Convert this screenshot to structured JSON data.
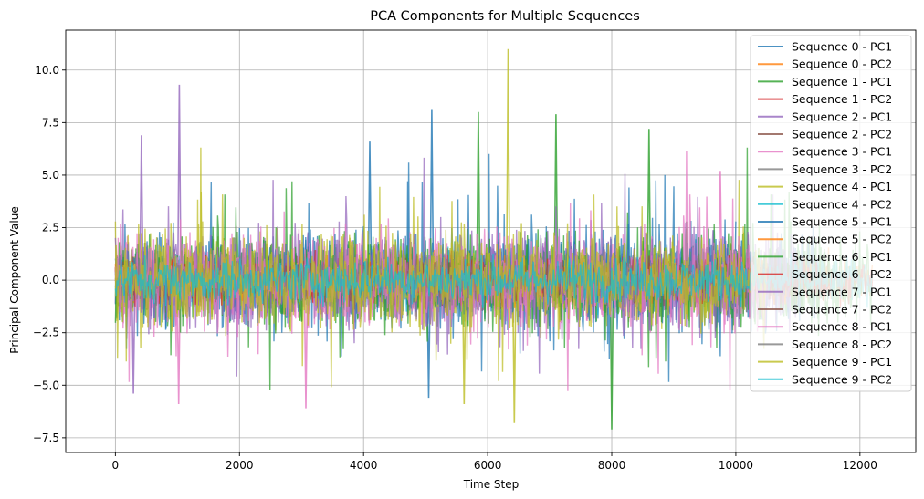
{
  "chart_data": {
    "type": "line",
    "title": "PCA Components for Multiple Sequences",
    "xlabel": "Time Step",
    "ylabel": "Principal Component Value",
    "xlim": [
      -800,
      12900
    ],
    "ylim": [
      -8.2,
      11.9
    ],
    "xticks": [
      0,
      2000,
      4000,
      6000,
      8000,
      10000,
      12000
    ],
    "xtick_labels": [
      "0",
      "2000",
      "4000",
      "6000",
      "8000",
      "10000",
      "12000"
    ],
    "yticks": [
      -7.5,
      -5.0,
      -2.5,
      0.0,
      2.5,
      5.0,
      7.5,
      10.0
    ],
    "ytick_labels": [
      "−7.5",
      "−5.0",
      "−2.5",
      "0.0",
      "2.5",
      "5.0",
      "7.5",
      "10.0"
    ],
    "grid": true,
    "legend_position": "top-right",
    "series": [
      {
        "name": "Sequence 0 - PC1",
        "color": "#1f77b4",
        "x_range": [
          0,
          10000
        ],
        "peaks": [
          [
            5100,
            8.1
          ],
          [
            4100,
            6.6
          ],
          [
            5050,
            -5.6
          ]
        ]
      },
      {
        "name": "Sequence 0 - PC2",
        "color": "#ff7f0e",
        "x_range": [
          0,
          12200
        ],
        "peaks": []
      },
      {
        "name": "Sequence 1 - PC1",
        "color": "#2ca02c",
        "x_range": [
          0,
          12200
        ],
        "peaks": [
          [
            7100,
            7.9
          ],
          [
            5850,
            8.0
          ],
          [
            8000,
            -7.1
          ],
          [
            8600,
            7.2
          ]
        ]
      },
      {
        "name": "Sequence 1 - PC2",
        "color": "#d62728",
        "x_range": [
          0,
          12200
        ],
        "peaks": []
      },
      {
        "name": "Sequence 2 - PC1",
        "color": "#9467bd",
        "x_range": [
          0,
          11000
        ],
        "peaks": [
          [
            1030,
            9.3
          ],
          [
            420,
            6.9
          ],
          [
            290,
            -5.4
          ]
        ]
      },
      {
        "name": "Sequence 2 - PC2",
        "color": "#8c564b",
        "x_range": [
          0,
          11000
        ],
        "peaks": []
      },
      {
        "name": "Sequence 3 - PC1",
        "color": "#e377c2",
        "x_range": [
          0,
          10200
        ],
        "peaks": [
          [
            1020,
            -5.9
          ],
          [
            3070,
            -6.1
          ],
          [
            9750,
            5.2
          ]
        ]
      },
      {
        "name": "Sequence 3 - PC2",
        "color": "#7f7f7f",
        "x_range": [
          0,
          10200
        ],
        "peaks": []
      },
      {
        "name": "Sequence 4 - PC1",
        "color": "#bcbd22",
        "x_range": [
          0,
          10200
        ],
        "peaks": [
          [
            6330,
            11.0
          ],
          [
            6430,
            -6.8
          ],
          [
            5620,
            -5.9
          ]
        ]
      },
      {
        "name": "Sequence 4 - PC2",
        "color": "#17becf",
        "x_range": [
          0,
          10200
        ],
        "peaks": []
      },
      {
        "name": "Sequence 5 - PC1",
        "color": "#1f77b4",
        "x_range": [
          0,
          11500
        ],
        "peaks": []
      },
      {
        "name": "Sequence 5 - PC2",
        "color": "#ff7f0e",
        "x_range": [
          0,
          11500
        ],
        "peaks": []
      },
      {
        "name": "Sequence 6 - PC1",
        "color": "#2ca02c",
        "x_range": [
          0,
          11500
        ],
        "peaks": []
      },
      {
        "name": "Sequence 6 - PC2",
        "color": "#d62728",
        "x_range": [
          0,
          11500
        ],
        "peaks": []
      },
      {
        "name": "Sequence 7 - PC1",
        "color": "#9467bd",
        "x_range": [
          0,
          11000
        ],
        "peaks": []
      },
      {
        "name": "Sequence 7 - PC2",
        "color": "#8c564b",
        "x_range": [
          0,
          11000
        ],
        "peaks": []
      },
      {
        "name": "Sequence 8 - PC1",
        "color": "#e377c2",
        "x_range": [
          0,
          10500
        ],
        "peaks": []
      },
      {
        "name": "Sequence 8 - PC2",
        "color": "#7f7f7f",
        "x_range": [
          0,
          10500
        ],
        "peaks": []
      },
      {
        "name": "Sequence 9 - PC1",
        "color": "#bcbd22",
        "x_range": [
          0,
          10500
        ],
        "peaks": []
      },
      {
        "name": "Sequence 9 - PC2",
        "color": "#17becf",
        "x_range": [
          0,
          12200
        ],
        "peaks": []
      }
    ]
  }
}
